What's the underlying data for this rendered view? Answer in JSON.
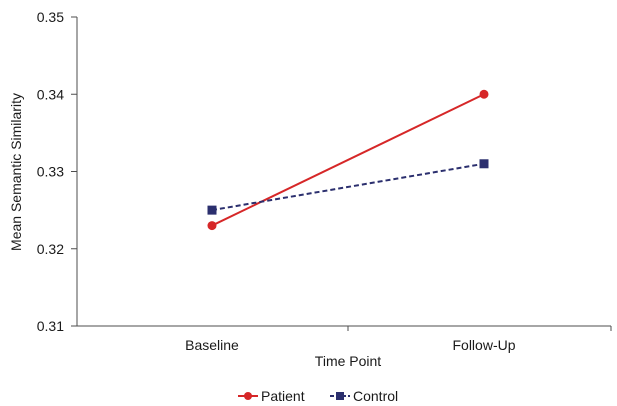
{
  "chart_data": {
    "type": "line",
    "xlabel": "Time Point",
    "ylabel": "Mean Semantic Similarity",
    "categories": [
      "Baseline",
      "Follow-Up"
    ],
    "ylim": [
      0.31,
      0.35
    ],
    "yticks": [
      "0.31",
      "0.32",
      "0.33",
      "0.34",
      "0.35"
    ],
    "grid": false,
    "legend_position": "bottom-center",
    "series": [
      {
        "name": "Patient",
        "values": [
          0.323,
          0.34
        ],
        "color": "#d62728",
        "marker": "circle",
        "line_style": "solid"
      },
      {
        "name": "Control",
        "values": [
          0.325,
          0.331
        ],
        "color": "#2b2f6e",
        "marker": "square",
        "line_style": "dashed"
      }
    ]
  }
}
